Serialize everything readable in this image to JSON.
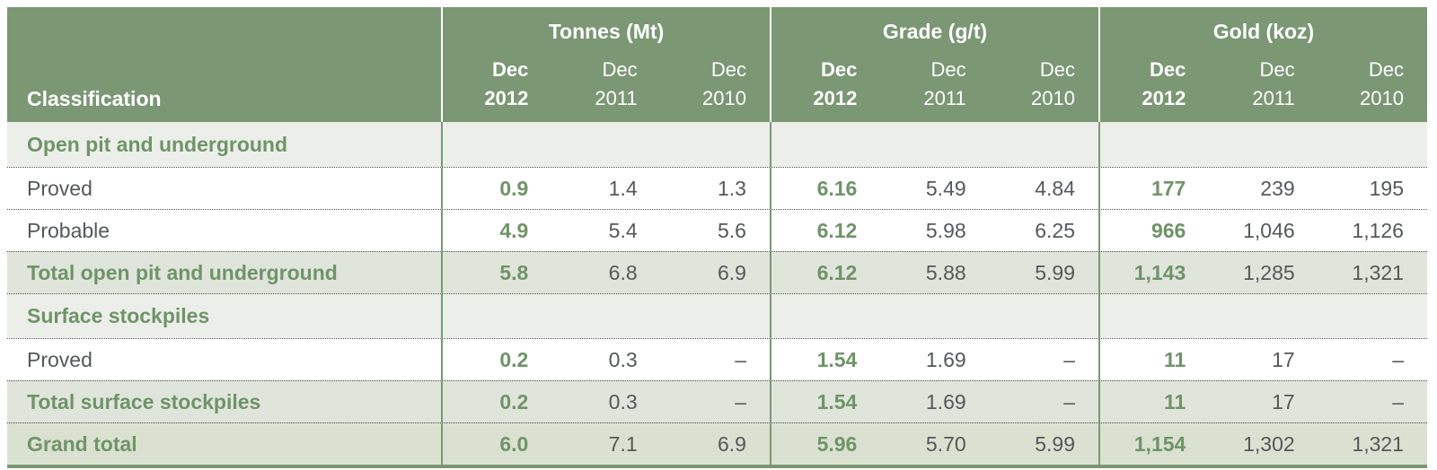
{
  "table": {
    "classification_header": "Classification",
    "groups": [
      {
        "label": "Tonnes (Mt)"
      },
      {
        "label": "Grade (g/t)"
      },
      {
        "label": "Gold (koz)"
      }
    ],
    "period_headers": [
      {
        "line1": "Dec",
        "line2": "2012",
        "emphasis": true
      },
      {
        "line1": "Dec",
        "line2": "2011",
        "emphasis": false
      },
      {
        "line1": "Dec",
        "line2": "2010",
        "emphasis": false
      }
    ],
    "rows": [
      {
        "type": "section",
        "label": "Open pit and underground",
        "values": [
          "",
          "",
          "",
          "",
          "",
          "",
          "",
          "",
          ""
        ]
      },
      {
        "type": "data",
        "label": "Proved",
        "values": [
          "0.9",
          "1.4",
          "1.3",
          "6.16",
          "5.49",
          "4.84",
          "177",
          "239",
          "195"
        ]
      },
      {
        "type": "data",
        "label": "Probable",
        "values": [
          "4.9",
          "5.4",
          "5.6",
          "6.12",
          "5.98",
          "6.25",
          "966",
          "1,046",
          "1,126"
        ]
      },
      {
        "type": "total",
        "label": "Total open pit and underground",
        "values": [
          "5.8",
          "6.8",
          "6.9",
          "6.12",
          "5.88",
          "5.99",
          "1,143",
          "1,285",
          "1,321"
        ]
      },
      {
        "type": "section",
        "label": "Surface stockpiles",
        "values": [
          "",
          "",
          "",
          "",
          "",
          "",
          "",
          "",
          ""
        ]
      },
      {
        "type": "data",
        "label": "Proved",
        "values": [
          "0.2",
          "0.3",
          "–",
          "1.54",
          "1.69",
          "–",
          "11",
          "17",
          "–"
        ]
      },
      {
        "type": "total",
        "label": "Total surface stockpiles",
        "values": [
          "0.2",
          "0.3",
          "–",
          "1.54",
          "1.69",
          "–",
          "11",
          "17",
          "–"
        ]
      },
      {
        "type": "grand",
        "label": "Grand total",
        "values": [
          "6.0",
          "7.1",
          "6.9",
          "5.96",
          "5.70",
          "5.99",
          "1,154",
          "1,302",
          "1,321"
        ]
      }
    ]
  },
  "colors": {
    "header_green": "#7b9774",
    "divider_green": "#7b9774",
    "section_row_bg": "#ecefe9",
    "total_row_bg": "#e0e5dc",
    "grand_row_bg": "#dae1d1",
    "accent_text_green": "#6f9468",
    "body_text_grey": "#55585a"
  }
}
